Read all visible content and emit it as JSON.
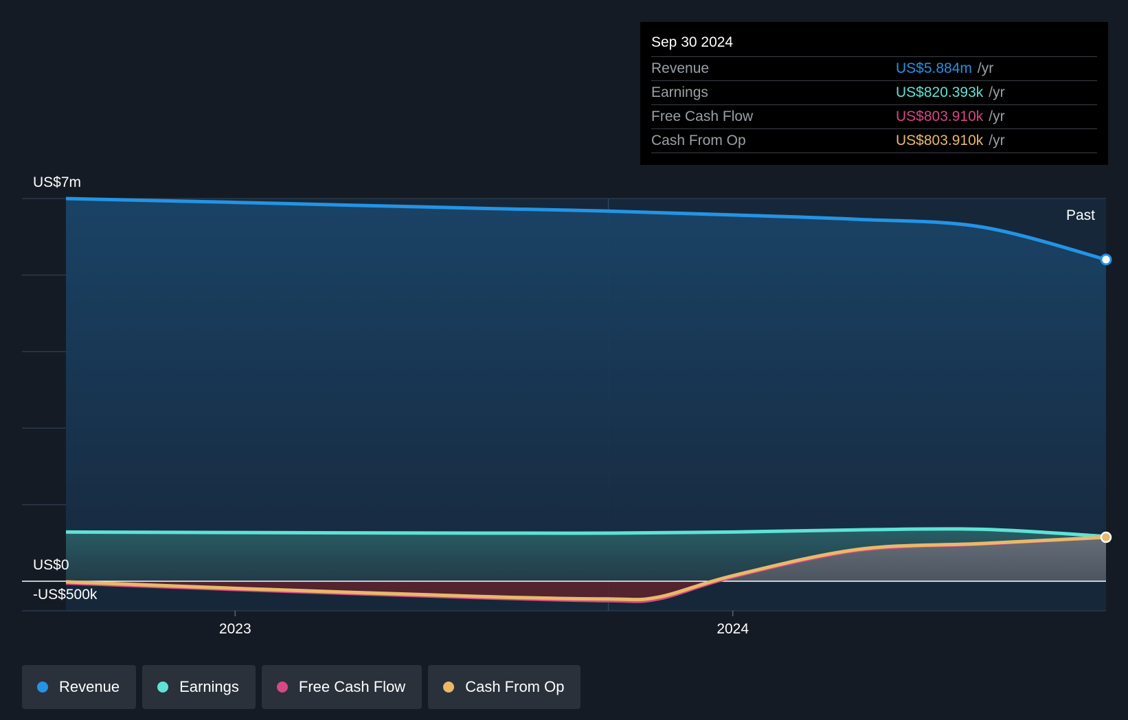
{
  "chart_data": {
    "type": "area",
    "title": "",
    "xlabel": "",
    "ylabel": "",
    "x_ticks": [
      "2023",
      "2024"
    ],
    "x_tick_values": [
      2023.0,
      2024.0
    ],
    "xlim": [
      2022.66,
      2024.75
    ],
    "y_tick_labels": {
      "top": "US$7m",
      "zero": "US$0",
      "bottom": "-US$500k"
    },
    "ylim": [
      -500000,
      7000000
    ],
    "grid": true,
    "legend_position": "bottom",
    "period_label": "Past",
    "series": [
      {
        "name": "Revenue",
        "color": "#2394e6",
        "x": [
          2022.66,
          2023.0,
          2023.5,
          2023.75,
          2024.0,
          2024.25,
          2024.5,
          2024.75
        ],
        "values": [
          7000000,
          6930000,
          6820000,
          6770000,
          6700000,
          6620000,
          6480000,
          5884000
        ]
      },
      {
        "name": "Earnings",
        "color": "#5de3d6",
        "x": [
          2022.66,
          2023.0,
          2023.5,
          2023.75,
          2024.0,
          2024.25,
          2024.5,
          2024.75
        ],
        "values": [
          900000,
          890000,
          880000,
          880000,
          900000,
          940000,
          950000,
          820393
        ]
      },
      {
        "name": "Free Cash Flow",
        "color": "#d64886",
        "x": [
          2022.66,
          2023.0,
          2023.5,
          2023.75,
          2023.85,
          2024.0,
          2024.25,
          2024.5,
          2024.75
        ],
        "values": [
          -30000,
          -140000,
          -280000,
          -330000,
          -300000,
          80000,
          560000,
          680000,
          803910
        ]
      },
      {
        "name": "Cash From Op",
        "color": "#e9b96a",
        "x": [
          2022.66,
          2023.0,
          2023.5,
          2023.75,
          2023.85,
          2024.0,
          2024.25,
          2024.5,
          2024.75
        ],
        "values": [
          -10000,
          -120000,
          -260000,
          -300000,
          -270000,
          100000,
          580000,
          690000,
          803910
        ]
      }
    ]
  },
  "tooltip": {
    "date": "Sep 30 2024",
    "rows": [
      {
        "label": "Revenue",
        "value": "US$5.884m",
        "unit": "/yr",
        "color": "#2394e6"
      },
      {
        "label": "Earnings",
        "value": "US$820.393k",
        "unit": "/yr",
        "color": "#5de3d6"
      },
      {
        "label": "Free Cash Flow",
        "value": "US$803.910k",
        "unit": "/yr",
        "color": "#d64886"
      },
      {
        "label": "Cash From Op",
        "value": "US$803.910k",
        "unit": "/yr",
        "color": "#e9b96a"
      }
    ]
  },
  "legend": [
    {
      "label": "Revenue",
      "color": "#2394e6"
    },
    {
      "label": "Earnings",
      "color": "#5de3d6"
    },
    {
      "label": "Free Cash Flow",
      "color": "#d64886"
    },
    {
      "label": "Cash From Op",
      "color": "#e9b96a"
    }
  ]
}
